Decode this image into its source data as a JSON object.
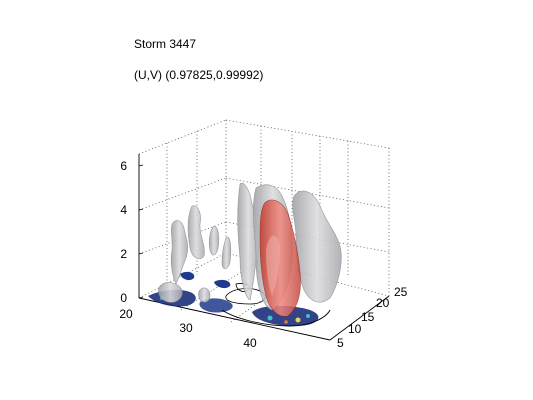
{
  "figure": {
    "title": "Storm 3447",
    "subtitle": "(U,V) (0.97825,0.99992)"
  },
  "axes": {
    "z_ticks": [
      "0",
      "2",
      "4",
      "6"
    ],
    "x_ticks": [
      "20",
      "30",
      "40"
    ],
    "y_ticks": [
      "5",
      "10",
      "15",
      "20",
      "25"
    ]
  },
  "colors": {
    "isosurface_gray": "#c9c9cc",
    "isosurface_red": "#d9534f",
    "ground_contour": "#1c2f7a",
    "grid": "#555555"
  }
}
